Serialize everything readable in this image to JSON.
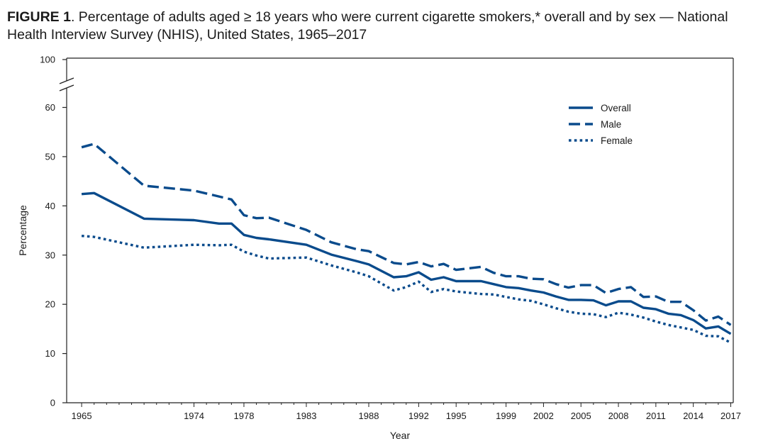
{
  "figure": {
    "label": "FIGURE 1",
    "title": ". Percentage of adults aged ≥ 18 years who were current cigarette smokers,* overall and by sex — National Health Interview Survey (NHIS), United States, 1965–2017"
  },
  "chart_data": {
    "type": "line",
    "xlabel": "Year",
    "ylabel": "Percentage",
    "ylim": [
      0,
      100
    ],
    "y_axis_break": [
      60,
      100
    ],
    "yticks": [
      0,
      10,
      20,
      30,
      40,
      50,
      60,
      100
    ],
    "xticks": [
      1965,
      1974,
      1978,
      1983,
      1988,
      1992,
      1995,
      1999,
      2002,
      2005,
      2008,
      2011,
      2014,
      2017
    ],
    "grid": false,
    "legend_position": "top-right",
    "color": "#0a4b8c",
    "x": [
      1965,
      1966,
      1970,
      1974,
      1976,
      1977,
      1978,
      1979,
      1980,
      1983,
      1985,
      1987,
      1988,
      1990,
      1991,
      1992,
      1993,
      1994,
      1995,
      1997,
      1998,
      1999,
      2000,
      2001,
      2002,
      2003,
      2004,
      2005,
      2006,
      2007,
      2008,
      2009,
      2010,
      2011,
      2012,
      2013,
      2014,
      2015,
      2016,
      2017
    ],
    "series": [
      {
        "name": "Overall",
        "style": "solid",
        "values": [
          42.4,
          42.6,
          37.4,
          37.1,
          36.4,
          36.4,
          34.1,
          33.5,
          33.2,
          32.1,
          30.1,
          28.8,
          28.1,
          25.5,
          25.7,
          26.5,
          25.0,
          25.5,
          24.7,
          24.7,
          24.1,
          23.5,
          23.3,
          22.8,
          22.4,
          21.6,
          20.9,
          20.9,
          20.8,
          19.8,
          20.6,
          20.6,
          19.3,
          19.0,
          18.1,
          17.8,
          16.8,
          15.1,
          15.5,
          14.0
        ]
      },
      {
        "name": "Male",
        "style": "dashed",
        "values": [
          51.9,
          52.6,
          44.1,
          43.1,
          41.9,
          41.3,
          38.1,
          37.5,
          37.6,
          35.1,
          32.6,
          31.2,
          30.8,
          28.4,
          28.1,
          28.6,
          27.7,
          28.2,
          27.0,
          27.6,
          26.4,
          25.7,
          25.7,
          25.2,
          25.1,
          24.1,
          23.4,
          23.9,
          23.9,
          22.3,
          23.1,
          23.5,
          21.5,
          21.6,
          20.5,
          20.5,
          18.8,
          16.7,
          17.5,
          15.8
        ]
      },
      {
        "name": "Female",
        "style": "dotted",
        "values": [
          33.9,
          33.7,
          31.5,
          32.1,
          32.0,
          32.1,
          30.7,
          29.9,
          29.3,
          29.5,
          27.9,
          26.5,
          25.7,
          22.8,
          23.5,
          24.6,
          22.5,
          23.1,
          22.6,
          22.1,
          22.0,
          21.5,
          21.0,
          20.7,
          20.0,
          19.2,
          18.5,
          18.1,
          18.0,
          17.4,
          18.3,
          17.9,
          17.3,
          16.5,
          15.8,
          15.3,
          14.8,
          13.6,
          13.5,
          12.2
        ]
      }
    ]
  }
}
